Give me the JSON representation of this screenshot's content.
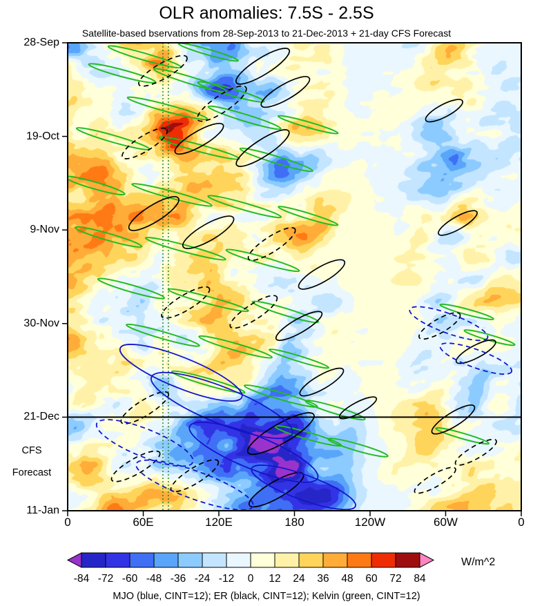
{
  "chart_data": {
    "type": "heatmap",
    "title": "OLR anomalies: 7.5S - 2.5S",
    "subtitle": "Satellite-based bservations from 28-Sep-2013 to 21-Dec-2013 + 21-day CFS Forecast",
    "x_axis": {
      "labels": [
        "0",
        "60E",
        "120E",
        "180",
        "120W",
        "60W",
        "0"
      ],
      "positions": [
        0,
        0.1667,
        0.3333,
        0.5,
        0.6667,
        0.8333,
        1
      ]
    },
    "y_axis": {
      "labels": [
        "28-Sep",
        "19-Oct",
        "9-Nov",
        "30-Nov",
        "21-Dec",
        "11-Jan"
      ],
      "positions": [
        0,
        0.2,
        0.4,
        0.6,
        0.8,
        1
      ]
    },
    "forecast": {
      "label_line1": "CFS",
      "label_line2": "Forecast",
      "line_pos": 0.8
    },
    "colorbar": {
      "levels": [
        -84,
        -72,
        -60,
        -48,
        -36,
        -24,
        -12,
        0,
        12,
        24,
        36,
        48,
        60,
        72,
        84
      ],
      "colors": [
        "#9933CC",
        "#2626C8",
        "#3333E6",
        "#3F6FF5",
        "#59A5FA",
        "#8CCBFF",
        "#C3E5FF",
        "#EAF7FF",
        "#FFFFD9",
        "#FFF2A8",
        "#FFD45A",
        "#FFAC38",
        "#FF7A14",
        "#EF2D05",
        "#9E0E0E",
        "#FF85C2"
      ],
      "units": "W/m^2"
    },
    "legend": {
      "text": "MJO (blue, CINT=12); ER (black, CINT=12); Kelvin (green, CINT=12)"
    },
    "reference_lines": {
      "vertical_positions": [
        0.21,
        0.222
      ],
      "vertical_color": "#1E7A1E"
    },
    "anomaly_features": [
      [
        158,
        91,
        32,
        6.5,
        -60
      ],
      [
        108,
        84,
        16,
        4,
        -45
      ],
      [
        170,
        98,
        24,
        5,
        -48
      ],
      [
        187,
        42,
        16,
        5,
        42
      ],
      [
        169,
        25,
        13,
        6,
        -34
      ],
      [
        72,
        77,
        12,
        3,
        -42
      ],
      [
        40,
        52,
        40,
        34,
        14
      ],
      [
        119,
        58,
        16,
        4,
        32
      ],
      [
        310,
        92,
        16,
        5,
        34
      ],
      [
        79,
        101,
        20,
        4,
        40
      ],
      [
        205,
        102,
        16,
        3,
        -45
      ],
      [
        75,
        3,
        10,
        4,
        45
      ],
      [
        125,
        8,
        12,
        5,
        -32
      ],
      [
        88,
        23,
        14,
        8,
        30
      ],
      [
        300,
        18,
        10,
        14,
        -15
      ],
      [
        298,
        48,
        10,
        14,
        -12
      ],
      [
        20,
        96,
        14,
        5,
        30
      ],
      [
        220,
        90,
        14,
        6,
        -30
      ]
    ],
    "overlays": {
      "kelvin": {
        "name": "Kelvin",
        "color": "#22BB22",
        "width": 2,
        "ellipses": [
          [
            0.17,
            0.03,
            55,
            5,
            16,
            0
          ],
          [
            0.31,
            0.02,
            45,
            4,
            16,
            0
          ],
          [
            0.12,
            0.065,
            50,
            5,
            15,
            0
          ],
          [
            0.27,
            0.08,
            55,
            5,
            17,
            0
          ],
          [
            0.36,
            0.105,
            50,
            5,
            16,
            0
          ],
          [
            0.22,
            0.14,
            60,
            5,
            15,
            0
          ],
          [
            0.39,
            0.16,
            55,
            5,
            17,
            0
          ],
          [
            0.53,
            0.175,
            45,
            4,
            16,
            0
          ],
          [
            0.1,
            0.205,
            55,
            5,
            16,
            0
          ],
          [
            0.29,
            0.225,
            60,
            5,
            15,
            0
          ],
          [
            0.46,
            0.25,
            55,
            5,
            17,
            0
          ],
          [
            0.06,
            0.305,
            45,
            5,
            16,
            0
          ],
          [
            0.23,
            0.325,
            60,
            5,
            15,
            0
          ],
          [
            0.39,
            0.35,
            55,
            5,
            16,
            0
          ],
          [
            0.53,
            0.37,
            45,
            4,
            17,
            0
          ],
          [
            0.09,
            0.415,
            50,
            5,
            16,
            0
          ],
          [
            0.26,
            0.44,
            60,
            5,
            15,
            0
          ],
          [
            0.43,
            0.465,
            55,
            5,
            16,
            0
          ],
          [
            0.14,
            0.525,
            50,
            5,
            16,
            0
          ],
          [
            0.31,
            0.55,
            60,
            5,
            15,
            0
          ],
          [
            0.48,
            0.575,
            50,
            5,
            17,
            0
          ],
          [
            0.21,
            0.625,
            55,
            5,
            16,
            0
          ],
          [
            0.37,
            0.65,
            55,
            5,
            16,
            0
          ],
          [
            0.51,
            0.675,
            45,
            4,
            17,
            0
          ],
          [
            0.31,
            0.725,
            55,
            5,
            16,
            0
          ],
          [
            0.47,
            0.755,
            55,
            5,
            16,
            0
          ],
          [
            0.59,
            0.785,
            45,
            5,
            17,
            0
          ],
          [
            0.53,
            0.84,
            50,
            5,
            16,
            0
          ],
          [
            0.64,
            0.865,
            45,
            5,
            16,
            0
          ],
          [
            0.88,
            0.575,
            40,
            4,
            15,
            0
          ],
          [
            0.93,
            0.63,
            38,
            4,
            16,
            0
          ],
          [
            0.87,
            0.84,
            40,
            4,
            16,
            0
          ]
        ]
      },
      "er": {
        "name": "ER",
        "color": "#000000",
        "width": 1.7,
        "ellipses": [
          [
            0.43,
            0.05,
            45,
            12,
            -32,
            0
          ],
          [
            0.21,
            0.06,
            40,
            11,
            -30,
            1
          ],
          [
            0.34,
            0.13,
            42,
            12,
            -34,
            1
          ],
          [
            0.48,
            0.105,
            40,
            11,
            -30,
            0
          ],
          [
            0.17,
            0.215,
            38,
            11,
            -32,
            1
          ],
          [
            0.29,
            0.205,
            40,
            11,
            -30,
            0
          ],
          [
            0.43,
            0.225,
            45,
            12,
            -33,
            0
          ],
          [
            0.83,
            0.145,
            30,
            9,
            -28,
            0
          ],
          [
            0.19,
            0.365,
            42,
            12,
            -32,
            0
          ],
          [
            0.31,
            0.405,
            42,
            12,
            -30,
            0
          ],
          [
            0.45,
            0.43,
            40,
            11,
            -33,
            1
          ],
          [
            0.56,
            0.495,
            38,
            11,
            -30,
            0
          ],
          [
            0.86,
            0.385,
            32,
            9,
            -30,
            0
          ],
          [
            0.26,
            0.555,
            40,
            11,
            -31,
            1
          ],
          [
            0.41,
            0.575,
            40,
            11,
            -33,
            1
          ],
          [
            0.51,
            0.605,
            38,
            10,
            -30,
            0
          ],
          [
            0.82,
            0.605,
            34,
            10,
            -30,
            1
          ],
          [
            0.9,
            0.66,
            32,
            9,
            -28,
            0
          ],
          [
            0.56,
            0.725,
            36,
            10,
            -30,
            0
          ],
          [
            0.17,
            0.78,
            40,
            11,
            -32,
            1
          ],
          [
            0.47,
            0.835,
            55,
            14,
            -30,
            0
          ],
          [
            0.64,
            0.78,
            30,
            8,
            -28,
            0
          ],
          [
            0.85,
            0.805,
            36,
            10,
            -32,
            0
          ],
          [
            0.9,
            0.875,
            34,
            9,
            -30,
            1
          ],
          [
            0.15,
            0.905,
            40,
            11,
            -30,
            1
          ],
          [
            0.28,
            0.925,
            40,
            11,
            -32,
            1
          ],
          [
            0.46,
            0.955,
            45,
            12,
            -30,
            0
          ],
          [
            0.81,
            0.935,
            34,
            9,
            -30,
            1
          ]
        ]
      },
      "mjo": {
        "name": "MJO",
        "color": "#1414CC",
        "width": 1.8,
        "ellipses": [
          [
            0.25,
            0.705,
            95,
            22,
            22,
            0
          ],
          [
            0.34,
            0.775,
            110,
            26,
            22,
            0
          ],
          [
            0.17,
            0.855,
            75,
            20,
            22,
            1
          ],
          [
            0.41,
            0.875,
            100,
            24,
            22,
            0
          ],
          [
            0.28,
            0.945,
            90,
            20,
            20,
            1
          ],
          [
            0.52,
            0.95,
            80,
            18,
            20,
            0
          ],
          [
            0.84,
            0.6,
            60,
            14,
            20,
            1
          ],
          [
            0.9,
            0.675,
            55,
            13,
            20,
            1
          ]
        ]
      }
    }
  }
}
